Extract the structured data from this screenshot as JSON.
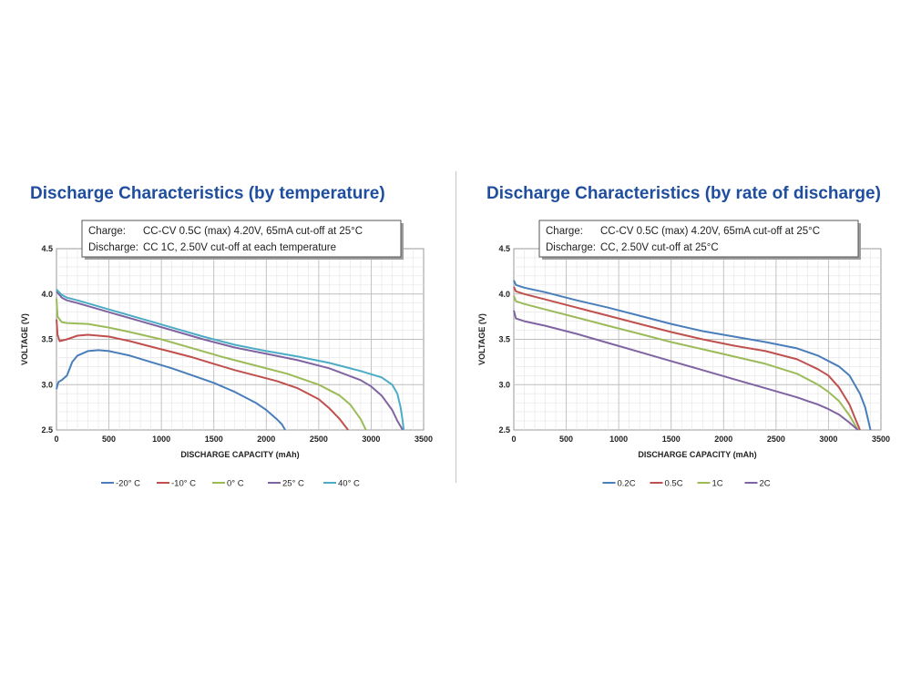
{
  "chart_data": [
    {
      "type": "line",
      "title": "Discharge Characteristics (by temperature)",
      "note": {
        "line1_label": "Charge:",
        "line1_value": "CC-CV 0.5C (max) 4.20V, 65mA cut-off at 25°C",
        "line2_label": "Discharge:",
        "line2_value": "CC 1C, 2.50V cut-off at each temperature"
      },
      "xlabel": "DISCHARGE CAPACITY (mAh)",
      "ylabel": "VOLTAGE (V)",
      "xlim": [
        0,
        3500
      ],
      "ylim": [
        2.5,
        4.5
      ],
      "xticks": [
        "0",
        "500",
        "1000",
        "1500",
        "2000",
        "2500",
        "3000",
        "3500"
      ],
      "yticks": [
        "2.5",
        "3.0",
        "3.5",
        "4.0",
        "4.5"
      ],
      "grid": true,
      "legend_position": "bottom",
      "series": [
        {
          "name": "-20° C",
          "color": "#4a7ebb",
          "x": [
            0,
            10,
            20,
            50,
            100,
            150,
            200,
            300,
            400,
            500,
            700,
            900,
            1100,
            1300,
            1500,
            1700,
            1900,
            2000,
            2100,
            2150,
            2180
          ],
          "y": [
            2.95,
            3.0,
            3.03,
            3.05,
            3.1,
            3.25,
            3.32,
            3.37,
            3.38,
            3.37,
            3.32,
            3.25,
            3.18,
            3.1,
            3.02,
            2.92,
            2.8,
            2.72,
            2.62,
            2.56,
            2.5
          ]
        },
        {
          "name": "-10° C",
          "color": "#c0504d",
          "x": [
            0,
            10,
            30,
            100,
            200,
            300,
            500,
            700,
            900,
            1100,
            1300,
            1500,
            1700,
            1900,
            2100,
            2300,
            2500,
            2600,
            2700,
            2780
          ],
          "y": [
            3.72,
            3.55,
            3.48,
            3.5,
            3.54,
            3.55,
            3.53,
            3.48,
            3.42,
            3.36,
            3.3,
            3.23,
            3.16,
            3.1,
            3.04,
            2.96,
            2.84,
            2.74,
            2.62,
            2.5
          ]
        },
        {
          "name": "0° C",
          "color": "#9bbb59",
          "x": [
            0,
            10,
            50,
            100,
            300,
            500,
            700,
            1000,
            1300,
            1600,
            1900,
            2200,
            2500,
            2700,
            2800,
            2900,
            2950
          ],
          "y": [
            3.95,
            3.75,
            3.69,
            3.68,
            3.67,
            3.63,
            3.58,
            3.5,
            3.4,
            3.3,
            3.21,
            3.12,
            3.0,
            2.88,
            2.78,
            2.62,
            2.5
          ]
        },
        {
          "name": "25° C",
          "color": "#8064a2",
          "x": [
            0,
            50,
            100,
            200,
            500,
            800,
            1100,
            1400,
            1700,
            2000,
            2300,
            2600,
            2900,
            3000,
            3100,
            3200,
            3250,
            3280,
            3300
          ],
          "y": [
            4.03,
            3.96,
            3.93,
            3.9,
            3.8,
            3.7,
            3.6,
            3.5,
            3.41,
            3.34,
            3.27,
            3.18,
            3.05,
            2.98,
            2.88,
            2.72,
            2.6,
            2.54,
            2.5
          ]
        },
        {
          "name": "40° C",
          "color": "#4bacc6",
          "x": [
            0,
            50,
            100,
            200,
            500,
            800,
            1100,
            1400,
            1700,
            2000,
            2300,
            2600,
            2900,
            3100,
            3200,
            3250,
            3280,
            3300,
            3310
          ],
          "y": [
            4.05,
            3.99,
            3.96,
            3.93,
            3.83,
            3.73,
            3.63,
            3.53,
            3.44,
            3.37,
            3.31,
            3.24,
            3.15,
            3.08,
            3.0,
            2.9,
            2.75,
            2.6,
            2.5
          ]
        }
      ]
    },
    {
      "type": "line",
      "title": "Discharge Characteristics (by rate of discharge)",
      "note": {
        "line1_label": "Charge:",
        "line1_value": "CC-CV 0.5C (max) 4.20V, 65mA cut-off at 25°C",
        "line2_label": "Discharge:",
        "line2_value": "CC, 2.50V cut-off at 25°C"
      },
      "xlabel": "DISCHARGE CAPACITY (mAh)",
      "ylabel": "VOLTAGE (V)",
      "xlim": [
        0,
        3500
      ],
      "ylim": [
        2.5,
        4.5
      ],
      "xticks": [
        "0",
        "500",
        "1000",
        "1500",
        "2000",
        "2500",
        "3000",
        "3500"
      ],
      "yticks": [
        "2.5",
        "3.0",
        "3.5",
        "4.0",
        "4.5"
      ],
      "grid": true,
      "legend_position": "bottom",
      "series": [
        {
          "name": "0.2C",
          "color": "#4a7ebb",
          "x": [
            0,
            20,
            100,
            300,
            600,
            900,
            1200,
            1500,
            1800,
            2100,
            2400,
            2700,
            2900,
            3100,
            3200,
            3300,
            3350,
            3380,
            3400
          ],
          "y": [
            4.15,
            4.1,
            4.07,
            4.02,
            3.93,
            3.85,
            3.76,
            3.67,
            3.59,
            3.53,
            3.47,
            3.4,
            3.32,
            3.2,
            3.1,
            2.9,
            2.75,
            2.6,
            2.5
          ]
        },
        {
          "name": "0.5C",
          "color": "#c0504d",
          "x": [
            0,
            20,
            100,
            300,
            600,
            900,
            1200,
            1500,
            1800,
            2100,
            2400,
            2700,
            2900,
            3000,
            3100,
            3200,
            3250,
            3300
          ],
          "y": [
            4.08,
            4.03,
            4.0,
            3.94,
            3.85,
            3.76,
            3.67,
            3.58,
            3.5,
            3.43,
            3.37,
            3.28,
            3.17,
            3.1,
            2.97,
            2.78,
            2.64,
            2.5
          ]
        },
        {
          "name": "1C",
          "color": "#9bbb59",
          "x": [
            0,
            20,
            100,
            300,
            600,
            900,
            1200,
            1500,
            1800,
            2100,
            2400,
            2700,
            2900,
            3000,
            3100,
            3200,
            3280
          ],
          "y": [
            3.98,
            3.92,
            3.89,
            3.83,
            3.74,
            3.65,
            3.56,
            3.47,
            3.39,
            3.31,
            3.23,
            3.12,
            3.0,
            2.92,
            2.82,
            2.66,
            2.5
          ]
        },
        {
          "name": "2C",
          "color": "#8064a2",
          "x": [
            0,
            20,
            100,
            300,
            600,
            900,
            1200,
            1500,
            1800,
            2100,
            2400,
            2700,
            2900,
            3000,
            3100,
            3200,
            3280
          ],
          "y": [
            3.82,
            3.73,
            3.7,
            3.65,
            3.56,
            3.46,
            3.36,
            3.26,
            3.16,
            3.06,
            2.96,
            2.86,
            2.78,
            2.73,
            2.67,
            2.58,
            2.5
          ]
        }
      ]
    }
  ]
}
